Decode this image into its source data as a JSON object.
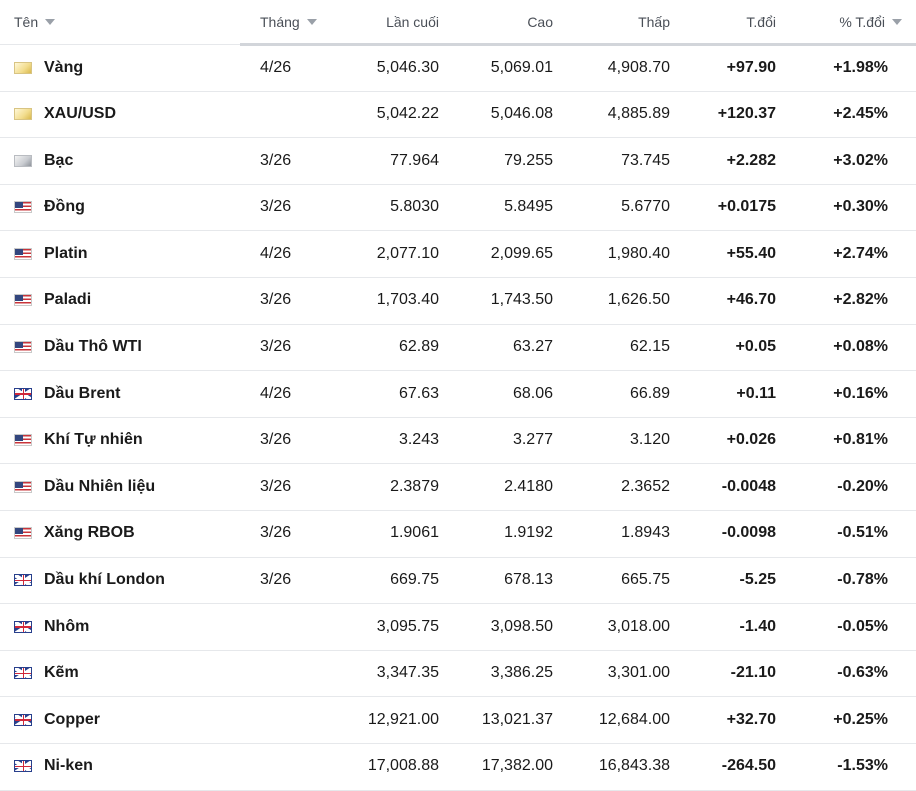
{
  "colors": {
    "positive": "#0e8a3c",
    "negative": "#d32f2f"
  },
  "header": {
    "name": "Tên",
    "month": "Tháng",
    "last": "Lần cuối",
    "high": "Cao",
    "low": "Thấp",
    "change": "T.đổi",
    "change_pct": "% T.đổi"
  },
  "rows": [
    {
      "flag": "gold",
      "name": "Vàng",
      "month": "4/26",
      "last": "5,046.30",
      "high": "5,069.01",
      "low": "4,908.70",
      "change": "+97.90",
      "change_pct": "+1.98%",
      "dir": "pos"
    },
    {
      "flag": "gold",
      "name": "XAU/USD",
      "month": "",
      "last": "5,042.22",
      "high": "5,046.08",
      "low": "4,885.89",
      "change": "+120.37",
      "change_pct": "+2.45%",
      "dir": "pos"
    },
    {
      "flag": "silver",
      "name": "Bạc",
      "month": "3/26",
      "last": "77.964",
      "high": "79.255",
      "low": "73.745",
      "change": "+2.282",
      "change_pct": "+3.02%",
      "dir": "pos"
    },
    {
      "flag": "us",
      "name": "Đồng",
      "month": "3/26",
      "last": "5.8030",
      "high": "5.8495",
      "low": "5.6770",
      "change": "+0.0175",
      "change_pct": "+0.30%",
      "dir": "pos"
    },
    {
      "flag": "us",
      "name": "Platin",
      "month": "4/26",
      "last": "2,077.10",
      "high": "2,099.65",
      "low": "1,980.40",
      "change": "+55.40",
      "change_pct": "+2.74%",
      "dir": "pos"
    },
    {
      "flag": "us",
      "name": "Paladi",
      "month": "3/26",
      "last": "1,703.40",
      "high": "1,743.50",
      "low": "1,626.50",
      "change": "+46.70",
      "change_pct": "+2.82%",
      "dir": "pos"
    },
    {
      "flag": "us",
      "name": "Dầu Thô WTI",
      "month": "3/26",
      "last": "62.89",
      "high": "63.27",
      "low": "62.15",
      "change": "+0.05",
      "change_pct": "+0.08%",
      "dir": "pos"
    },
    {
      "flag": "uk",
      "name": "Dầu Brent",
      "month": "4/26",
      "last": "67.63",
      "high": "68.06",
      "low": "66.89",
      "change": "+0.11",
      "change_pct": "+0.16%",
      "dir": "pos"
    },
    {
      "flag": "us",
      "name": "Khí Tự nhiên",
      "month": "3/26",
      "last": "3.243",
      "high": "3.277",
      "low": "3.120",
      "change": "+0.026",
      "change_pct": "+0.81%",
      "dir": "pos"
    },
    {
      "flag": "us",
      "name": "Dầu Nhiên liệu",
      "month": "3/26",
      "last": "2.3879",
      "high": "2.4180",
      "low": "2.3652",
      "change": "-0.0048",
      "change_pct": "-0.20%",
      "dir": "neg"
    },
    {
      "flag": "us",
      "name": "Xăng RBOB",
      "month": "3/26",
      "last": "1.9061",
      "high": "1.9192",
      "low": "1.8943",
      "change": "-0.0098",
      "change_pct": "-0.51%",
      "dir": "neg"
    },
    {
      "flag": "uk",
      "name": "Dầu khí London",
      "month": "3/26",
      "last": "669.75",
      "high": "678.13",
      "low": "665.75",
      "change": "-5.25",
      "change_pct": "-0.78%",
      "dir": "neg"
    },
    {
      "flag": "uk",
      "name": "Nhôm",
      "month": "",
      "last": "3,095.75",
      "high": "3,098.50",
      "low": "3,018.00",
      "change": "-1.40",
      "change_pct": "-0.05%",
      "dir": "neg"
    },
    {
      "flag": "uk",
      "name": "Kẽm",
      "month": "",
      "last": "3,347.35",
      "high": "3,386.25",
      "low": "3,301.00",
      "change": "-21.10",
      "change_pct": "-0.63%",
      "dir": "neg"
    },
    {
      "flag": "uk",
      "name": "Copper",
      "month": "",
      "last": "12,921.00",
      "high": "13,021.37",
      "low": "12,684.00",
      "change": "+32.70",
      "change_pct": "+0.25%",
      "dir": "pos"
    },
    {
      "flag": "uk",
      "name": "Ni-ken",
      "month": "",
      "last": "17,008.88",
      "high": "17,382.00",
      "low": "16,843.38",
      "change": "-264.50",
      "change_pct": "-1.53%",
      "dir": "neg"
    }
  ]
}
